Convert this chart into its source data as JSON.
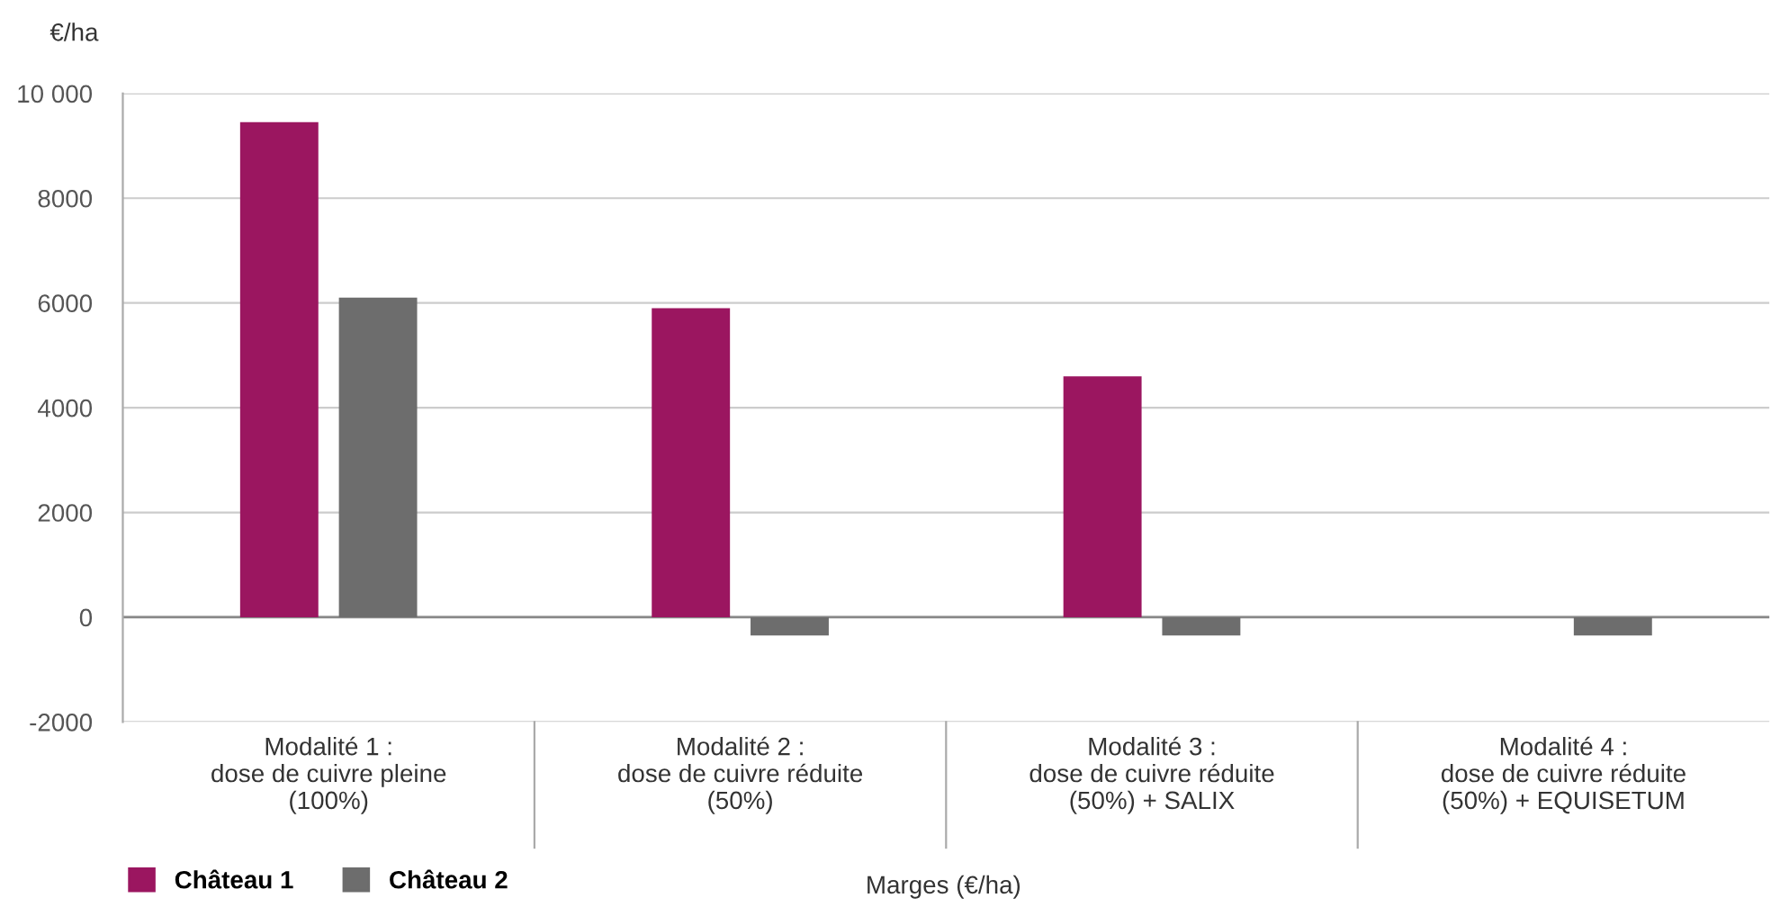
{
  "chart_data": {
    "type": "bar",
    "ylabel": "€/ha",
    "xlabel": "Marges (€/ha)",
    "categories": [
      "Modalité 1 :\ndose de cuivre pleine\n(100%)",
      "Modalité 2 :\ndose de cuivre réduite\n(50%)",
      "Modalité 3 :\ndose de cuivre réduite\n(50%) + SALIX",
      "Modalité 4 :\ndose de cuivre réduite\n(50%) + EQUISETUM"
    ],
    "series": [
      {
        "name": "Château 1",
        "color": "#9b1660",
        "values": [
          9450,
          5900,
          4600,
          null
        ]
      },
      {
        "name": "Château 2",
        "color": "#6d6d6d",
        "values": [
          6100,
          -350,
          -350,
          -350
        ]
      }
    ],
    "ylim": [
      -2000,
      10000
    ],
    "yticks": [
      {
        "value": -2000,
        "label": "-2000"
      },
      0,
      2000,
      4000,
      6000,
      8000,
      {
        "value": 10000,
        "label": "10 000"
      }
    ],
    "grid": "y",
    "legend": "bottom left"
  }
}
